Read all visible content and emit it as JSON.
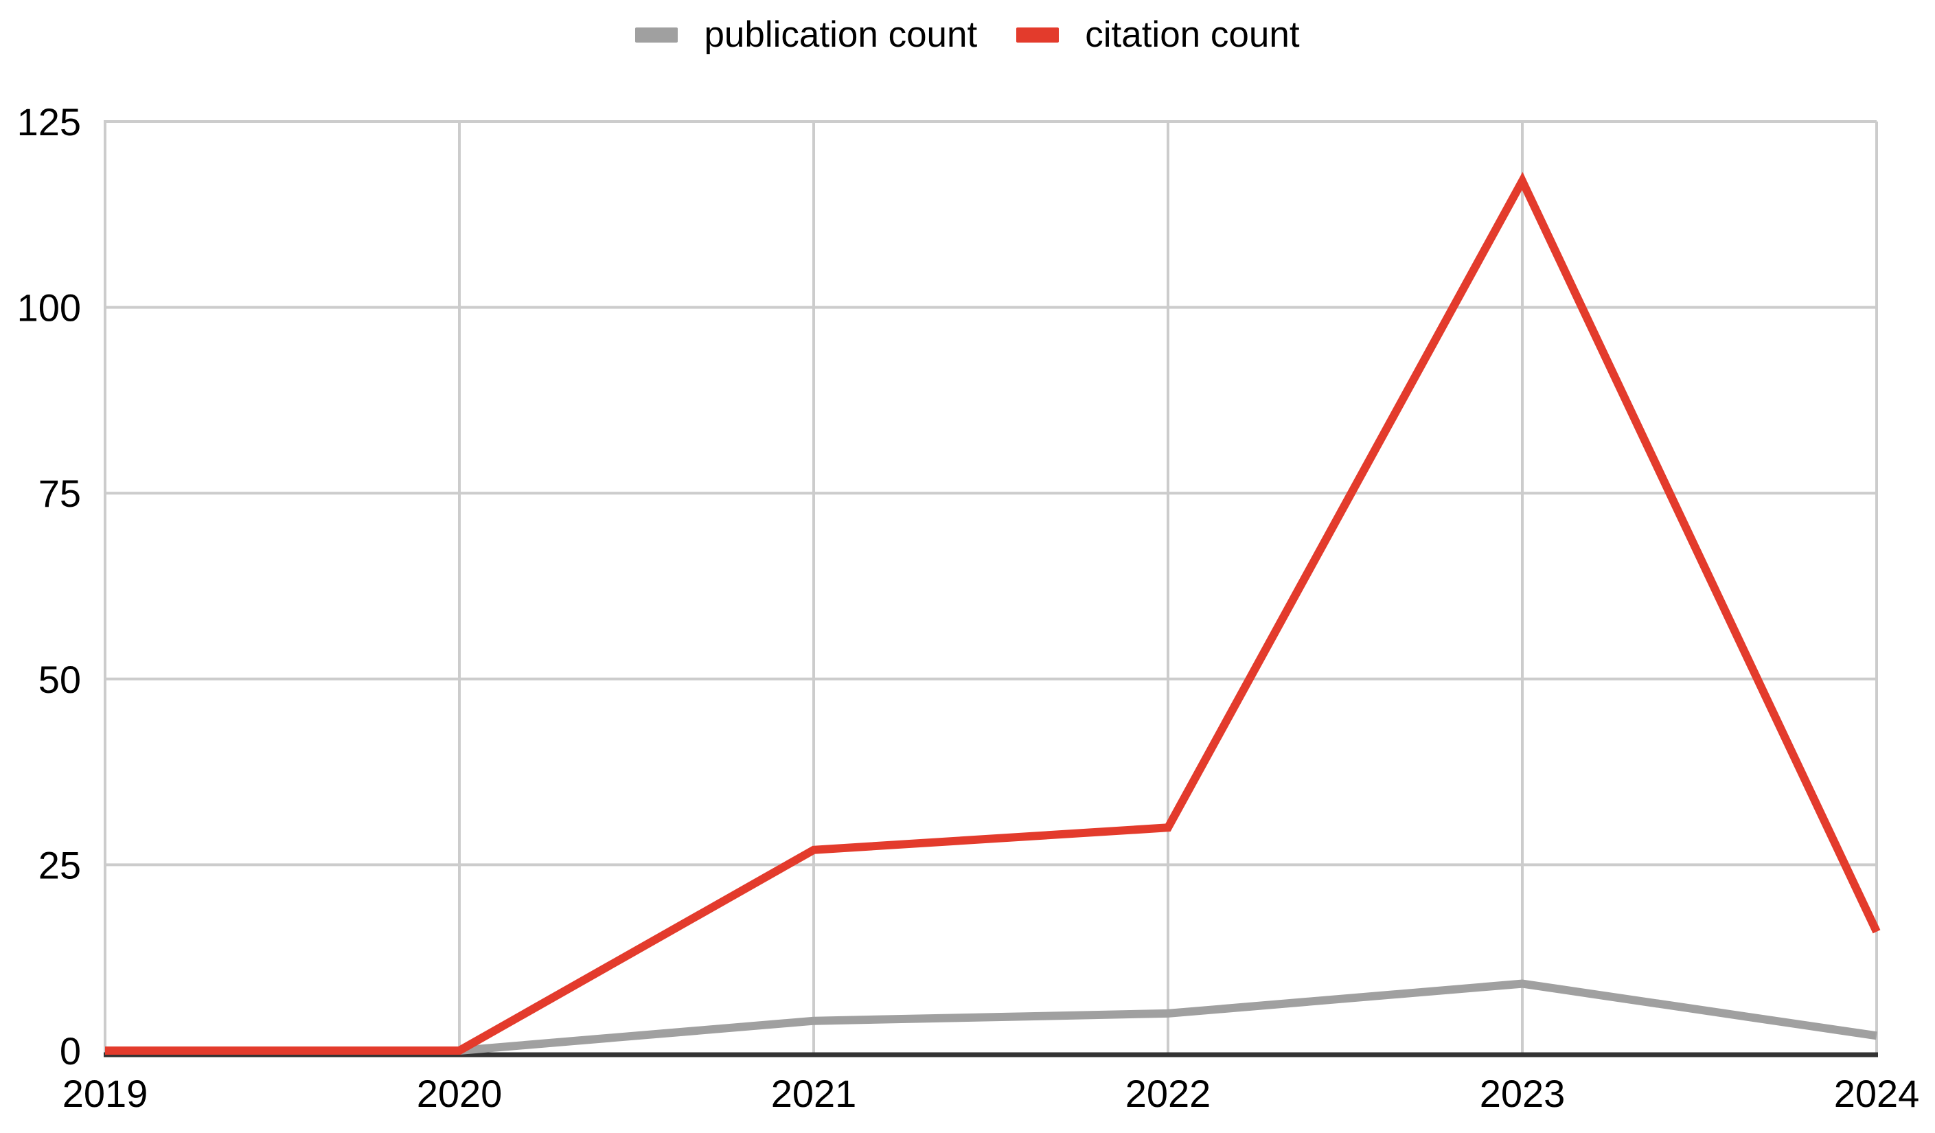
{
  "chart_data": {
    "type": "line",
    "title": "",
    "xlabel": "",
    "ylabel": "",
    "x_labels": [
      "2019",
      "2020",
      "2021",
      "2022",
      "2023",
      "2024"
    ],
    "yticks": [
      0,
      25,
      50,
      75,
      100,
      125
    ],
    "ylim": [
      0,
      125
    ],
    "grid": true,
    "legend_position": "top-center",
    "series": [
      {
        "name": "publication count",
        "color": "#a0a0a0",
        "values": [
          0,
          0,
          4,
          5,
          9,
          2
        ]
      },
      {
        "name": "citation count",
        "color": "#e33b2c",
        "values": [
          0,
          0,
          27,
          30,
          117,
          16
        ]
      }
    ]
  },
  "colors": {
    "grid": "#cccccc",
    "axis": "#333333",
    "text": "#000000",
    "background": "#ffffff"
  }
}
